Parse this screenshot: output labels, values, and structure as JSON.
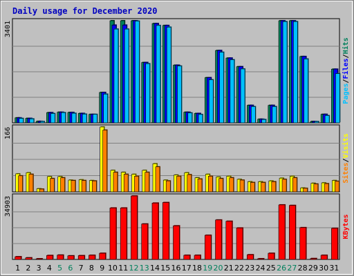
{
  "chart_data": {
    "type": "bar",
    "title": "Daily usage for December 2020",
    "categories": [
      "1",
      "2",
      "3",
      "4",
      "5",
      "6",
      "7",
      "8",
      "9",
      "10",
      "11",
      "12",
      "13",
      "14",
      "15",
      "16",
      "17",
      "18",
      "19",
      "20",
      "21",
      "22",
      "23",
      "24",
      "25",
      "26",
      "27",
      "28",
      "29",
      "30",
      "31"
    ],
    "weekend_days": [
      "5",
      "6",
      "12",
      "13",
      "19",
      "20",
      "26",
      "27"
    ],
    "panels": [
      {
        "id": "hits-files-pages",
        "ymax_label": "3401",
        "ymax": 3401,
        "legend": [
          "Pages",
          "/",
          "Files",
          "/",
          "Hits"
        ],
        "series": [
          {
            "name": "Hits",
            "color": "#00805c",
            "values": [
              166,
              149,
              49,
              340,
              354,
              346,
              313,
              282,
              1012,
              3401,
              3401,
              3401,
              2009,
              3306,
              3243,
              1920,
              354,
              312,
              1504,
              2409,
              2157,
              1870,
              582,
              121,
              582,
              3401,
              3401,
              2209,
              46,
              283,
              1787
            ]
          },
          {
            "name": "Files",
            "color": "#0000ff",
            "values": [
              166,
              149,
              49,
              340,
              354,
              346,
              313,
              282,
              1012,
              3254,
              3254,
              3401,
              2009,
              3306,
              3243,
              1920,
              354,
              312,
              1504,
              2409,
              2157,
              1870,
              582,
              121,
              582,
              3401,
              3401,
              2209,
              46,
              283,
              1787
            ]
          },
          {
            "name": "Pages",
            "color": "#00c0ff",
            "values": [
              147,
              132,
              44,
              310,
              340,
              318,
              290,
              282,
              956,
              3122,
              3122,
              3388,
              1970,
              3242,
              3187,
              1891,
              330,
              278,
              1434,
              2350,
              2100,
              1794,
              540,
              110,
              540,
              3371,
              3371,
              2127,
              42,
              241,
              1638
            ]
          }
        ]
      },
      {
        "id": "sites-visits",
        "ymax_label": "166",
        "ymax": 166,
        "legend": [
          "Sites",
          "/",
          "Visits"
        ],
        "series": [
          {
            "name": "Visits",
            "color": "#ffff00",
            "values": [
              46,
              49,
              8,
              39,
              39,
              30,
              31,
              29,
              166,
              55,
              50,
              45,
              55,
              72,
              30,
              43,
              49,
              36,
              45,
              38,
              40,
              32,
              26,
              26,
              28,
              35,
              40,
              10,
              22,
              23,
              29
            ]
          },
          {
            "name": "Sites",
            "color": "#ff8000",
            "values": [
              41,
              45,
              7,
              34,
              36,
              29,
              29,
              28,
              158,
              50,
              45,
              40,
              50,
              64,
              28,
              40,
              44,
              33,
              40,
              34,
              36,
              30,
              24,
              24,
              26,
              32,
              36,
              9,
              20,
              21,
              27
            ]
          }
        ]
      },
      {
        "id": "kbytes",
        "ymax_label": "34903",
        "ymax": 34903,
        "legend": [
          "KBytes"
        ],
        "series": [
          {
            "name": "KBytes",
            "color": "#ff0000",
            "values": [
              1500,
              900,
              200,
              2200,
              2400,
              2000,
              2100,
              2300,
              3400,
              28300,
              28300,
              34903,
              19500,
              31000,
              31300,
              18500,
              2300,
              2300,
              13300,
              21700,
              21000,
              17300,
              2600,
              400,
              3400,
              30000,
              29700,
              17500,
              500,
              2300,
              17100
            ]
          }
        ]
      }
    ]
  }
}
